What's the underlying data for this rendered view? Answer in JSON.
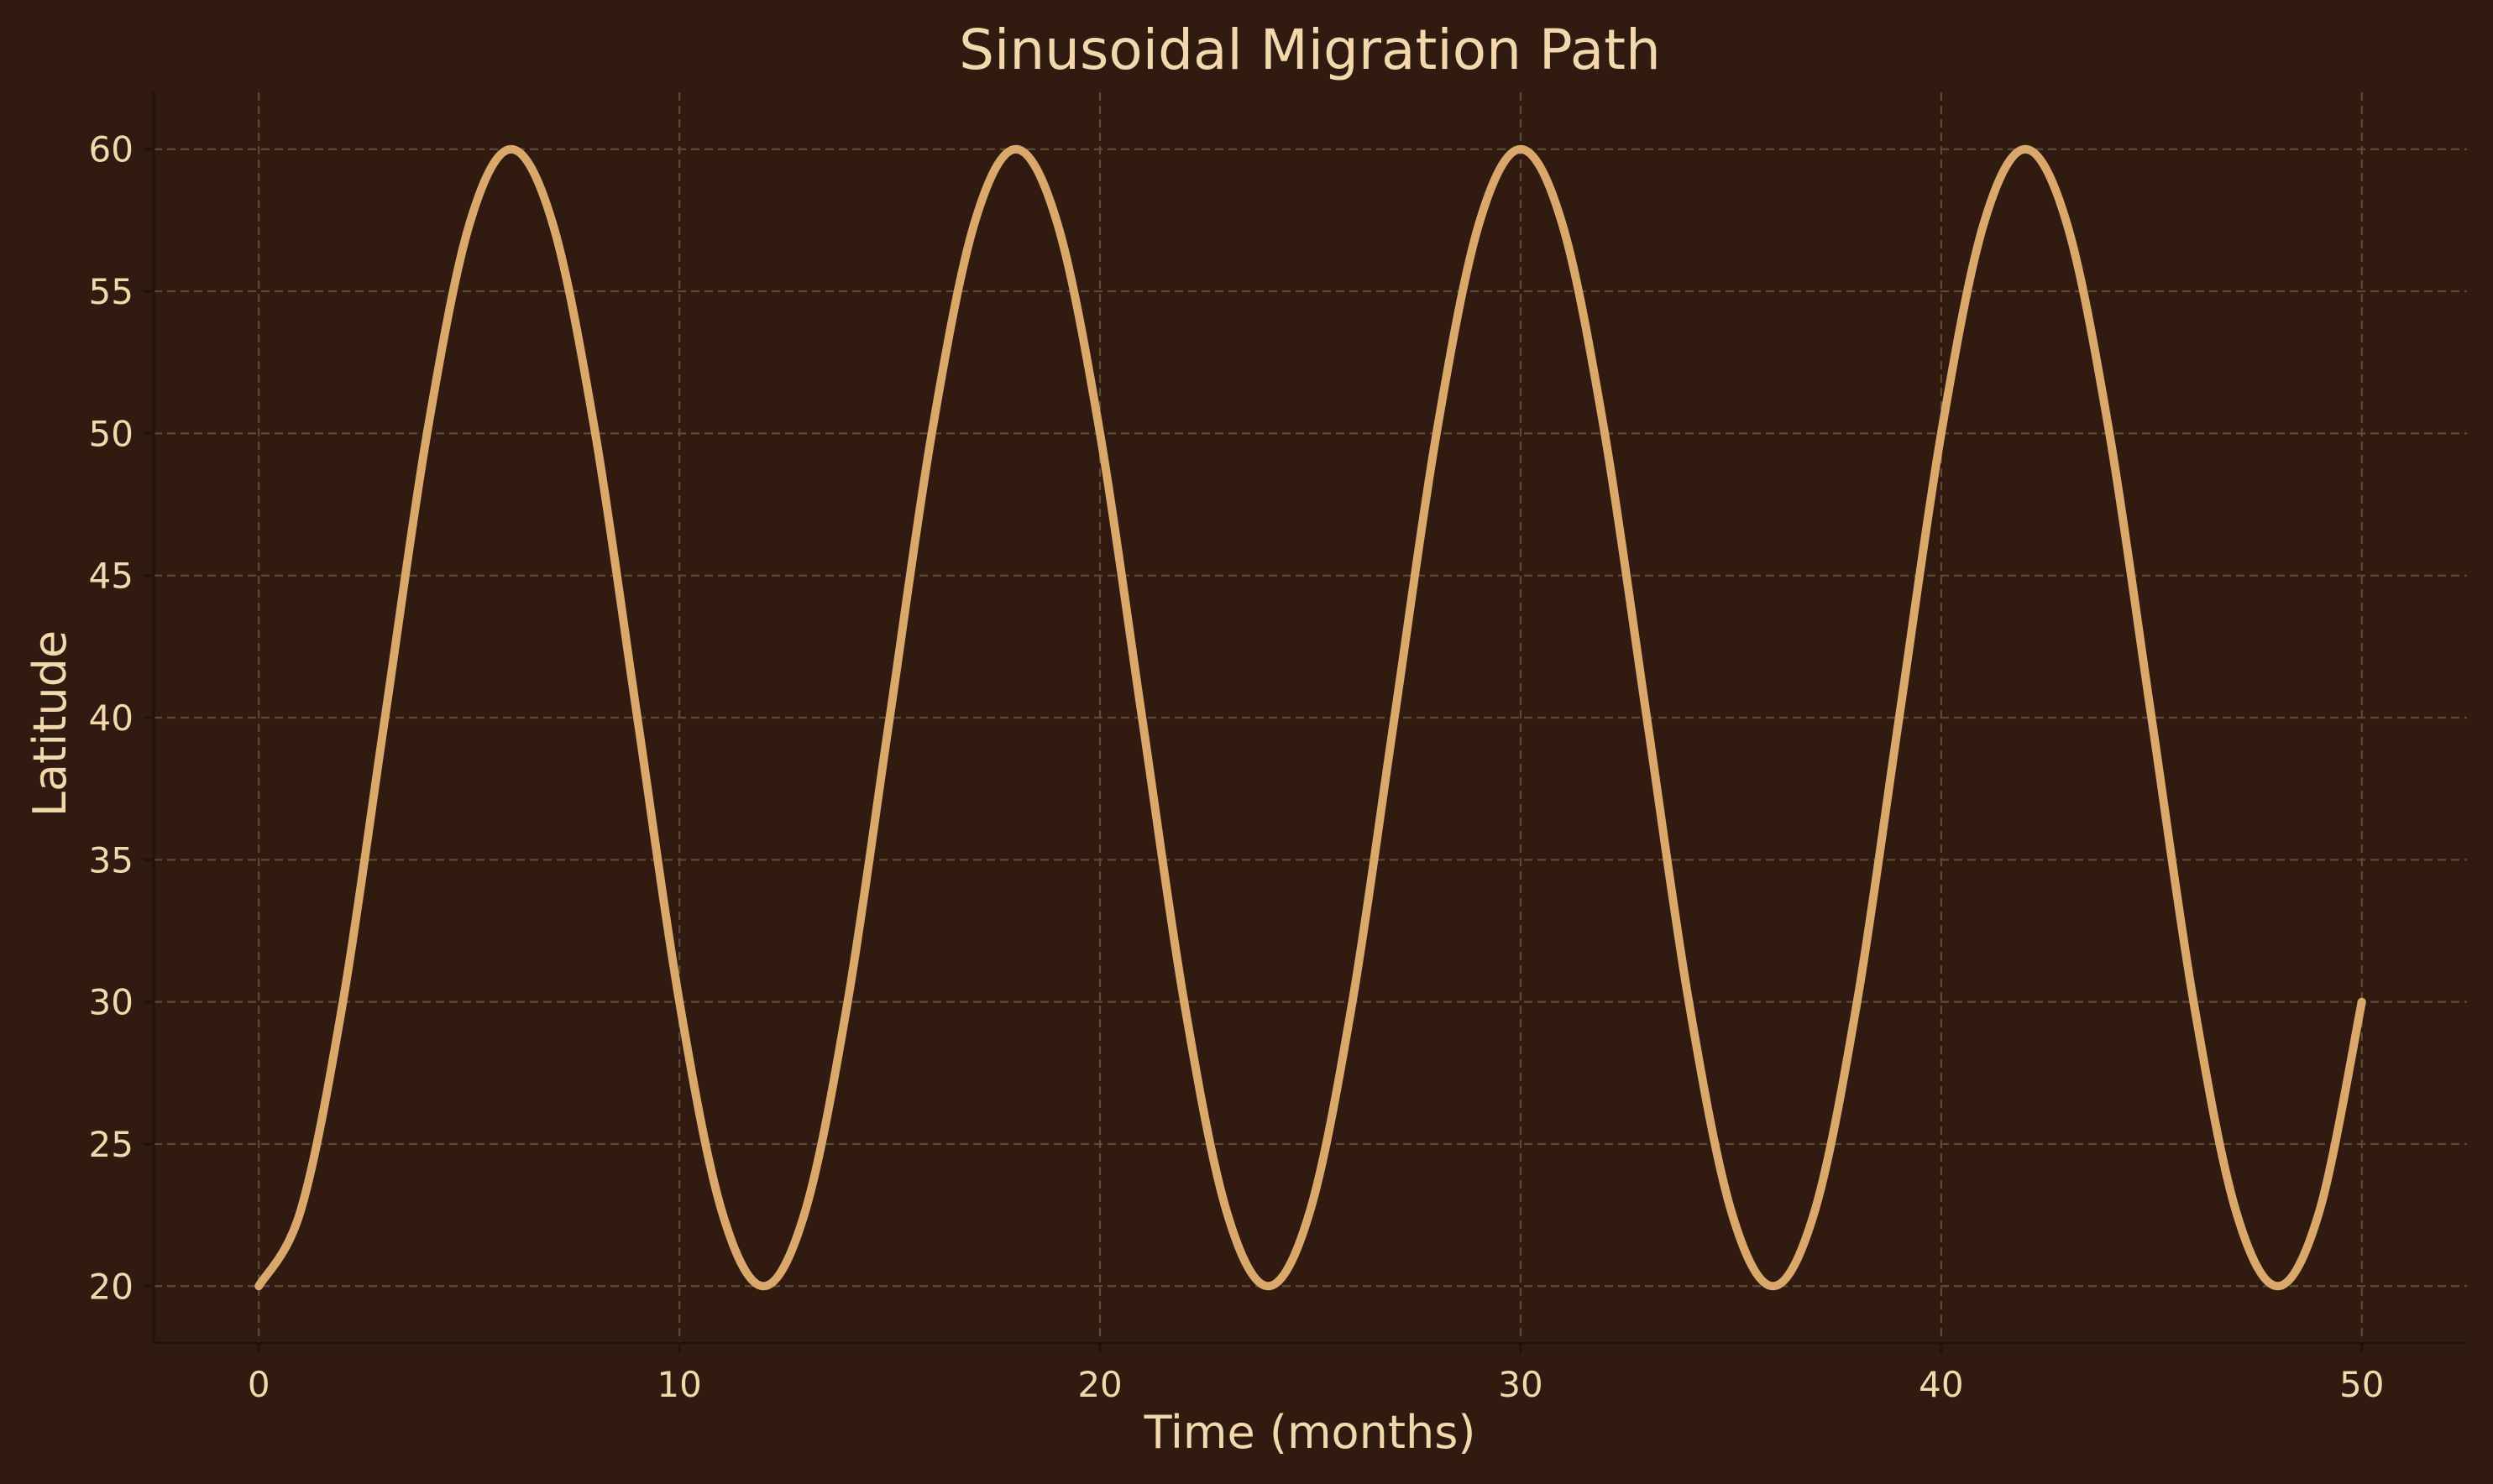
{
  "chart_data": {
    "type": "line",
    "title": "Sinusoidal Migration Path",
    "xlabel": "Time (months)",
    "ylabel": "Latitude",
    "xlim": [
      -2.5,
      52.5
    ],
    "ylim": [
      18,
      62
    ],
    "x_ticks": [
      0,
      10,
      20,
      30,
      40,
      50
    ],
    "y_ticks": [
      20,
      25,
      30,
      35,
      40,
      45,
      50,
      55,
      60
    ],
    "grid": true,
    "legend": "none",
    "colors": {
      "background": "#311a10",
      "line": "#d9a86a",
      "text": "#f3d8ad",
      "grid": "#5f4a36",
      "spine": "#1c1410"
    },
    "series": [
      {
        "x": [
          0,
          1,
          2,
          3,
          4,
          5,
          6,
          7,
          8,
          9,
          10,
          11,
          12,
          13,
          14,
          15,
          16,
          17,
          18,
          19,
          20,
          21,
          22,
          23,
          24,
          25,
          26,
          27,
          28,
          29,
          30,
          31,
          32,
          33,
          34,
          35,
          36,
          37,
          38,
          39,
          40,
          41,
          42,
          43,
          44,
          45,
          46,
          47,
          48,
          49,
          50
        ],
        "y": [
          20,
          22.68,
          30,
          40,
          50,
          57.32,
          60,
          57.32,
          50,
          40,
          30,
          22.68,
          20,
          22.68,
          30,
          40,
          50,
          57.32,
          60,
          57.32,
          50,
          40,
          30,
          22.68,
          20,
          22.68,
          30,
          40,
          50,
          57.32,
          60,
          57.32,
          50,
          40,
          30,
          22.68,
          20,
          22.68,
          30,
          40,
          50,
          57.32,
          60,
          57.32,
          50,
          40,
          30,
          22.68,
          20,
          22.68,
          30
        ]
      }
    ]
  }
}
